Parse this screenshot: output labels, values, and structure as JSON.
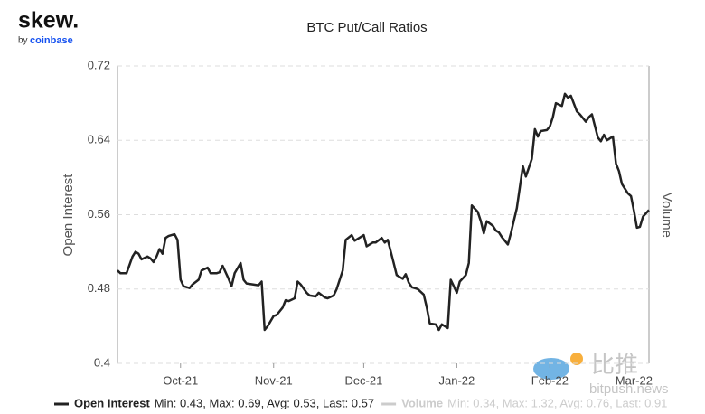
{
  "brand": {
    "name": "skew.",
    "by": "by",
    "company": "coinbase"
  },
  "watermark": {
    "cn": "比推",
    "site": "bitpush.news"
  },
  "chart_data": {
    "type": "line",
    "title": "BTC Put/Call Ratios",
    "ylabel": "Open Interest",
    "y2label": "Volume",
    "xlim": [
      0,
      177
    ],
    "xticks": [
      {
        "value": 21,
        "label": "Oct-21"
      },
      {
        "value": 52,
        "label": "Nov-21"
      },
      {
        "value": 82,
        "label": "Dec-21"
      },
      {
        "value": 113,
        "label": "Jan-22"
      },
      {
        "value": 144,
        "label": "Feb-22"
      },
      {
        "value": 172,
        "label": "Mar-22"
      }
    ],
    "ylim": [
      0.4,
      0.72
    ],
    "yticks": [
      0.4,
      0.48,
      0.56,
      0.64,
      0.72
    ],
    "grid": true,
    "x": [
      0,
      1,
      3,
      5,
      6,
      7,
      8,
      10,
      11,
      12,
      13,
      14,
      15,
      16,
      17,
      19,
      20,
      21,
      22,
      24,
      25,
      27,
      28,
      30,
      31,
      33,
      34,
      35,
      37,
      38,
      39,
      41,
      42,
      43,
      45,
      47,
      48,
      49,
      50,
      52,
      53,
      55,
      56,
      57,
      59,
      60,
      61,
      63,
      64,
      66,
      67,
      69,
      70,
      72,
      73,
      75,
      76,
      78,
      79,
      81,
      82,
      83,
      85,
      86,
      88,
      89,
      90,
      92,
      93,
      95,
      96,
      97,
      98,
      100,
      102,
      103,
      104,
      106,
      107,
      108,
      110,
      111,
      112,
      113,
      114,
      116,
      117,
      118,
      120,
      121,
      122,
      123,
      125,
      126,
      127,
      128,
      130,
      131,
      133,
      134,
      135,
      136,
      138,
      139,
      140,
      141,
      143,
      144,
      145,
      146,
      148,
      149,
      150,
      151,
      153,
      154,
      156,
      157,
      158,
      160,
      161,
      162,
      163,
      165,
      166,
      167,
      168,
      170,
      171,
      172,
      173,
      174,
      175,
      177
    ],
    "series": [
      {
        "name": "Open Interest",
        "color": "#222222",
        "values": [
          0.5,
          0.497,
          0.497,
          0.515,
          0.52,
          0.518,
          0.512,
          0.515,
          0.513,
          0.509,
          0.515,
          0.523,
          0.518,
          0.535,
          0.537,
          0.539,
          0.533,
          0.49,
          0.483,
          0.481,
          0.485,
          0.49,
          0.5,
          0.503,
          0.497,
          0.497,
          0.498,
          0.505,
          0.491,
          0.483,
          0.497,
          0.508,
          0.49,
          0.486,
          0.485,
          0.484,
          0.488,
          0.436,
          0.44,
          0.451,
          0.452,
          0.46,
          0.468,
          0.467,
          0.47,
          0.488,
          0.485,
          0.476,
          0.473,
          0.472,
          0.476,
          0.471,
          0.47,
          0.473,
          0.48,
          0.5,
          0.533,
          0.538,
          0.532,
          0.536,
          0.538,
          0.526,
          0.53,
          0.53,
          0.535,
          0.53,
          0.533,
          0.508,
          0.495,
          0.491,
          0.496,
          0.487,
          0.482,
          0.48,
          0.474,
          0.46,
          0.443,
          0.442,
          0.436,
          0.442,
          0.438,
          0.49,
          0.483,
          0.476,
          0.488,
          0.495,
          0.508,
          0.57,
          0.563,
          0.553,
          0.54,
          0.553,
          0.548,
          0.543,
          0.541,
          0.536,
          0.528,
          0.54,
          0.567,
          0.59,
          0.612,
          0.601,
          0.62,
          0.652,
          0.644,
          0.65,
          0.651,
          0.655,
          0.665,
          0.68,
          0.677,
          0.69,
          0.686,
          0.688,
          0.671,
          0.668,
          0.66,
          0.665,
          0.668,
          0.643,
          0.639,
          0.646,
          0.64,
          0.644,
          0.615,
          0.607,
          0.593,
          0.583,
          0.58,
          0.564,
          0.546,
          0.547,
          0.558,
          0.565
        ],
        "legend_stats": "Min: 0.43, Max: 0.69, Avg: 0.53, Last: 0.57"
      }
    ],
    "hidden_series": {
      "name": "Volume",
      "color": "#cccccc",
      "legend_stats": "Min: 0.34, Max: 1.32, Avg: 0.76, Last: 0.91"
    }
  }
}
